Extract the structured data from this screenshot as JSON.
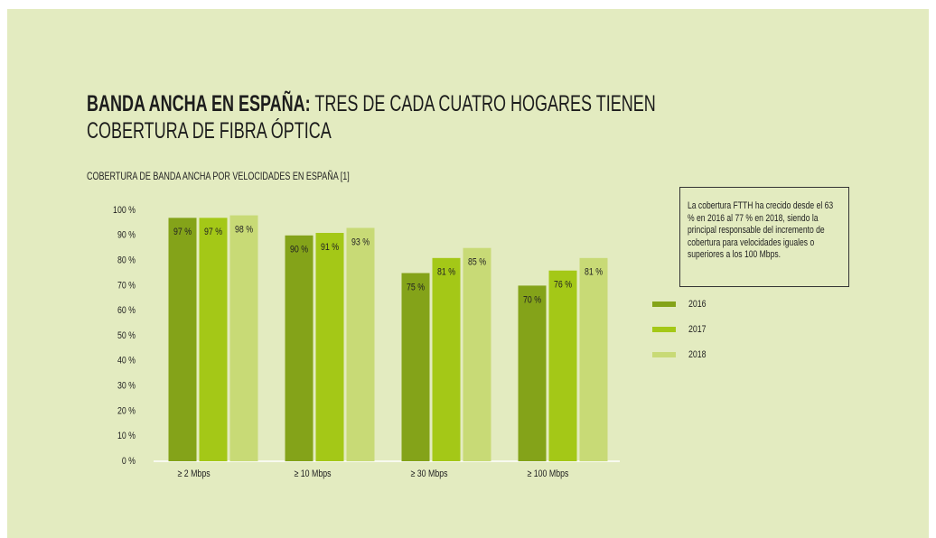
{
  "chart_data": {
    "type": "bar",
    "title_lead": "BANDA ANCHA EN ESPAÑA:",
    "title": "TRES DE CADA CUATRO HOGARES TIENEN COBERTURA DE FIBRA ÓPTICA",
    "subtitle": "COBERTURA DE BANDA ANCHA POR VELOCIDADES EN ESPAÑA [1]",
    "annotation": "La cobertura FTTH ha crecido desde el 63 % en 2016 al 77 % en 2018, siendo la principal responsable del incremento de cobertura para velocidades iguales o superiores a los 100 Mbps.",
    "categories": [
      "≥ 2 Mbps",
      "≥ 10 Mbps",
      "≥ 30 Mbps",
      "≥ 100 Mbps"
    ],
    "series": [
      {
        "name": "2016",
        "color": "#84a319",
        "values": [
          97,
          90,
          75,
          70
        ],
        "value_labels": [
          "97 %",
          "90 %",
          "75 %",
          "70 %"
        ]
      },
      {
        "name": "2017",
        "color": "#a4c817",
        "values": [
          97,
          91,
          81,
          76
        ],
        "value_labels": [
          "97 %",
          "91 %",
          "81 %",
          "76 %"
        ]
      },
      {
        "name": "2018",
        "color": "#c8da76",
        "values": [
          98,
          93,
          85,
          81
        ],
        "value_labels": [
          "98 %",
          "93 %",
          "85 %",
          "81 %"
        ]
      }
    ],
    "ylim": [
      0,
      100
    ],
    "yticks": [
      {
        "value": 0,
        "label": "0 %"
      },
      {
        "value": 10,
        "label": "10 %"
      },
      {
        "value": 20,
        "label": "20 %"
      },
      {
        "value": 30,
        "label": "30 %"
      },
      {
        "value": 40,
        "label": "40 %"
      },
      {
        "value": 50,
        "label": "50 %"
      },
      {
        "value": 60,
        "label": "60 %"
      },
      {
        "value": 70,
        "label": "70 %"
      },
      {
        "value": 80,
        "label": "80 %"
      },
      {
        "value": 90,
        "label": "90 %"
      },
      {
        "value": 100,
        "label": "100 %"
      }
    ],
    "grid": false,
    "legend": "right"
  }
}
